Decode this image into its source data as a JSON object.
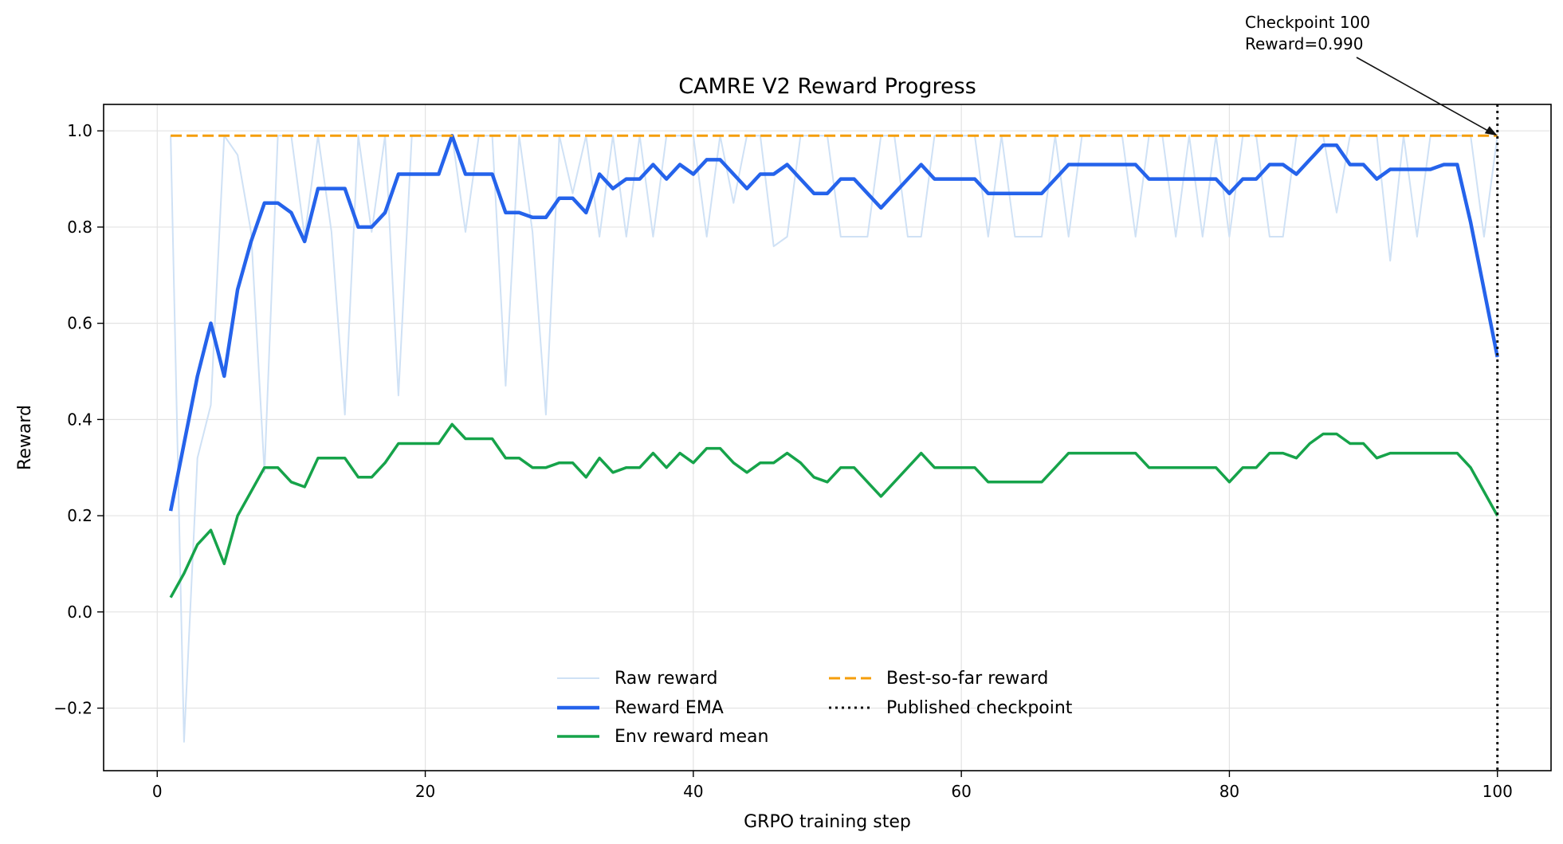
{
  "chart_data": {
    "type": "line",
    "title": "CAMRE V2 Reward Progress",
    "xlabel": "GRPO training step",
    "ylabel": "Reward",
    "xlim": [
      -4,
      104
    ],
    "ylim": [
      -0.33,
      1.055
    ],
    "xticks": [
      0,
      20,
      40,
      60,
      80,
      100
    ],
    "xtick_labels": [
      "0",
      "20",
      "40",
      "60",
      "80",
      "100"
    ],
    "yticks": [
      -0.2,
      0.0,
      0.2,
      0.4,
      0.6,
      0.8,
      1.0
    ],
    "ytick_labels": [
      "−0.2",
      "0.0",
      "0.2",
      "0.4",
      "0.6",
      "0.8",
      "1.0"
    ],
    "grid": true,
    "legend_placement": "lower center",
    "series": [
      {
        "name": "Raw reward",
        "color": "#cfe1f5",
        "style": "solid",
        "x": [
          1,
          2,
          3,
          4,
          5,
          6,
          7,
          8,
          9,
          10,
          11,
          12,
          13,
          14,
          15,
          16,
          17,
          18,
          19,
          20,
          21,
          22,
          23,
          24,
          25,
          26,
          27,
          28,
          29,
          30,
          31,
          32,
          33,
          34,
          35,
          36,
          37,
          38,
          39,
          40,
          41,
          42,
          43,
          44,
          45,
          46,
          47,
          48,
          49,
          50,
          51,
          52,
          53,
          54,
          55,
          56,
          57,
          58,
          59,
          60,
          61,
          62,
          63,
          64,
          65,
          66,
          67,
          68,
          69,
          70,
          71,
          72,
          73,
          74,
          75,
          76,
          77,
          78,
          79,
          80,
          81,
          82,
          83,
          84,
          85,
          86,
          87,
          88,
          89,
          90,
          91,
          92,
          93,
          94,
          95,
          96,
          97,
          98,
          99,
          100
        ],
        "values": [
          0.99,
          -0.27,
          0.32,
          0.43,
          0.99,
          0.95,
          0.79,
          0.29,
          0.99,
          0.99,
          0.78,
          0.99,
          0.79,
          0.41,
          0.99,
          0.79,
          0.99,
          0.45,
          0.99,
          0.99,
          0.99,
          0.99,
          0.79,
          0.99,
          0.99,
          0.47,
          0.99,
          0.79,
          0.41,
          0.99,
          0.87,
          0.99,
          0.78,
          0.99,
          0.78,
          0.99,
          0.78,
          0.99,
          0.99,
          0.99,
          0.78,
          0.99,
          0.85,
          0.99,
          0.99,
          0.76,
          0.78,
          0.99,
          0.99,
          0.99,
          0.78,
          0.78,
          0.78,
          0.99,
          0.99,
          0.78,
          0.78,
          0.99,
          0.99,
          0.99,
          0.99,
          0.78,
          0.99,
          0.78,
          0.78,
          0.78,
          0.99,
          0.78,
          0.99,
          0.99,
          0.99,
          0.99,
          0.78,
          0.99,
          0.99,
          0.78,
          0.99,
          0.78,
          0.99,
          0.78,
          0.99,
          0.99,
          0.78,
          0.78,
          0.99,
          0.99,
          0.99,
          0.83,
          0.99,
          0.99,
          0.99,
          0.73,
          0.99,
          0.78,
          0.99,
          0.99,
          0.99,
          0.99,
          0.78,
          0.99
        ]
      },
      {
        "name": "Reward EMA",
        "color": "#2563eb",
        "style": "solid",
        "x": [
          1,
          2,
          3,
          4,
          5,
          6,
          7,
          8,
          9,
          10,
          11,
          12,
          13,
          14,
          15,
          16,
          17,
          18,
          19,
          20,
          21,
          22,
          23,
          24,
          25,
          26,
          27,
          28,
          29,
          30,
          31,
          32,
          33,
          34,
          35,
          36,
          37,
          38,
          39,
          40,
          41,
          42,
          43,
          44,
          45,
          46,
          47,
          48,
          49,
          50,
          51,
          52,
          53,
          54,
          55,
          56,
          57,
          58,
          59,
          60,
          61,
          62,
          63,
          64,
          65,
          66,
          67,
          68,
          69,
          70,
          71,
          72,
          73,
          74,
          75,
          76,
          77,
          78,
          79,
          80,
          81,
          82,
          83,
          84,
          85,
          86,
          87,
          88,
          89,
          90,
          91,
          92,
          93,
          94,
          95,
          96,
          97,
          98,
          99,
          100
        ],
        "values": [
          0.21,
          0.35,
          0.49,
          0.6,
          0.49,
          0.67,
          0.77,
          0.85,
          0.85,
          0.83,
          0.77,
          0.88,
          0.88,
          0.88,
          0.8,
          0.8,
          0.83,
          0.91,
          0.91,
          0.91,
          0.91,
          0.99,
          0.91,
          0.91,
          0.91,
          0.83,
          0.83,
          0.82,
          0.82,
          0.86,
          0.86,
          0.83,
          0.91,
          0.88,
          0.9,
          0.9,
          0.93,
          0.9,
          0.93,
          0.91,
          0.94,
          0.94,
          0.91,
          0.88,
          0.91,
          0.91,
          0.93,
          0.9,
          0.87,
          0.87,
          0.9,
          0.9,
          0.87,
          0.84,
          0.87,
          0.9,
          0.93,
          0.9,
          0.9,
          0.9,
          0.9,
          0.87,
          0.87,
          0.87,
          0.87,
          0.87,
          0.9,
          0.93,
          0.93,
          0.93,
          0.93,
          0.93,
          0.93,
          0.9,
          0.9,
          0.9,
          0.9,
          0.9,
          0.9,
          0.87,
          0.9,
          0.9,
          0.93,
          0.93,
          0.91,
          0.94,
          0.97,
          0.97,
          0.93,
          0.93,
          0.9,
          0.92,
          0.92,
          0.92,
          0.92,
          0.93,
          0.93,
          0.81,
          0.67,
          0.53
        ]
      },
      {
        "name": "Env reward mean",
        "color": "#16a34a",
        "style": "solid",
        "x": [
          1,
          2,
          3,
          4,
          5,
          6,
          7,
          8,
          9,
          10,
          11,
          12,
          13,
          14,
          15,
          16,
          17,
          18,
          19,
          20,
          21,
          22,
          23,
          24,
          25,
          26,
          27,
          28,
          29,
          30,
          31,
          32,
          33,
          34,
          35,
          36,
          37,
          38,
          39,
          40,
          41,
          42,
          43,
          44,
          45,
          46,
          47,
          48,
          49,
          50,
          51,
          52,
          53,
          54,
          55,
          56,
          57,
          58,
          59,
          60,
          61,
          62,
          63,
          64,
          65,
          66,
          67,
          68,
          69,
          70,
          71,
          72,
          73,
          74,
          75,
          76,
          77,
          78,
          79,
          80,
          81,
          82,
          83,
          84,
          85,
          86,
          87,
          88,
          89,
          90,
          91,
          92,
          93,
          94,
          95,
          96,
          97,
          98,
          99,
          100
        ],
        "values": [
          0.03,
          0.08,
          0.14,
          0.17,
          0.1,
          0.2,
          0.25,
          0.3,
          0.3,
          0.27,
          0.26,
          0.32,
          0.32,
          0.32,
          0.28,
          0.28,
          0.31,
          0.35,
          0.35,
          0.35,
          0.35,
          0.39,
          0.36,
          0.36,
          0.36,
          0.32,
          0.32,
          0.3,
          0.3,
          0.31,
          0.31,
          0.28,
          0.32,
          0.29,
          0.3,
          0.3,
          0.33,
          0.3,
          0.33,
          0.31,
          0.34,
          0.34,
          0.31,
          0.29,
          0.31,
          0.31,
          0.33,
          0.31,
          0.28,
          0.27,
          0.3,
          0.3,
          0.27,
          0.24,
          0.27,
          0.3,
          0.33,
          0.3,
          0.3,
          0.3,
          0.3,
          0.27,
          0.27,
          0.27,
          0.27,
          0.27,
          0.3,
          0.33,
          0.33,
          0.33,
          0.33,
          0.33,
          0.33,
          0.3,
          0.3,
          0.3,
          0.3,
          0.3,
          0.3,
          0.27,
          0.3,
          0.3,
          0.33,
          0.33,
          0.32,
          0.35,
          0.37,
          0.37,
          0.35,
          0.35,
          0.32,
          0.33,
          0.33,
          0.33,
          0.33,
          0.33,
          0.33,
          0.3,
          0.25,
          0.2
        ]
      },
      {
        "name": "Best-so-far reward",
        "color": "#f59e0b",
        "style": "dashed",
        "x": [
          1,
          100
        ],
        "values": [
          0.99,
          0.99
        ]
      },
      {
        "name": "Published checkpoint",
        "color": "#111111",
        "style": "dotted",
        "vline_x": 100
      }
    ],
    "annotation": {
      "lines": [
        "Checkpoint 100",
        "Reward=0.990"
      ],
      "x": 100,
      "y": 0.99
    }
  }
}
